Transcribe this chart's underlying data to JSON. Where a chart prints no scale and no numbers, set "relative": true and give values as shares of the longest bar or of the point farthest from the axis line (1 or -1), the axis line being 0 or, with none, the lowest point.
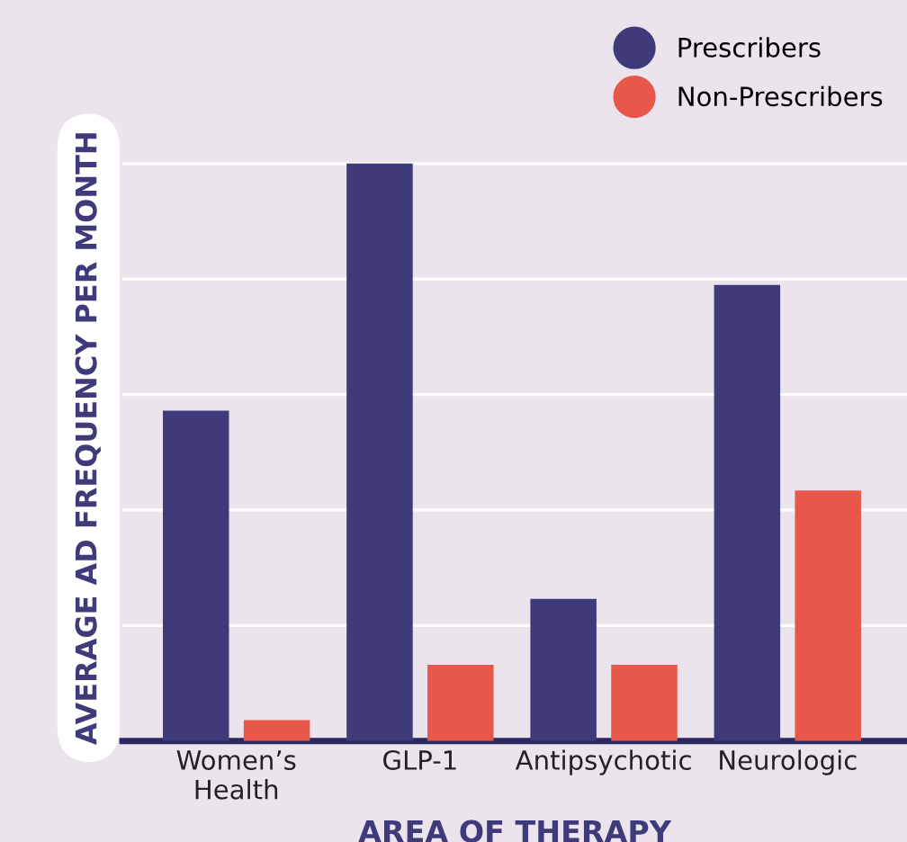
{
  "chart_data": {
    "type": "bar",
    "relative": true,
    "xlabel": "AREA OF THERAPY",
    "ylabel": "AVERAGE AD FREQUENCY PER MONTH",
    "categories": [
      "Women’s\nHealth",
      "GLP-1",
      "Antipsychotic",
      "Neurologic"
    ],
    "series": [
      {
        "name": "Prescribers",
        "color": "#3f3a7a",
        "values": [
          0.572,
          1,
          0.246,
          0.79
        ]
      },
      {
        "name": "Non-Prescribers",
        "color": "#e8584a",
        "values": [
          0.036,
          0.132,
          0.132,
          0.434
        ]
      }
    ],
    "grid": "y",
    "legend": "top right",
    "marker": "circle"
  }
}
